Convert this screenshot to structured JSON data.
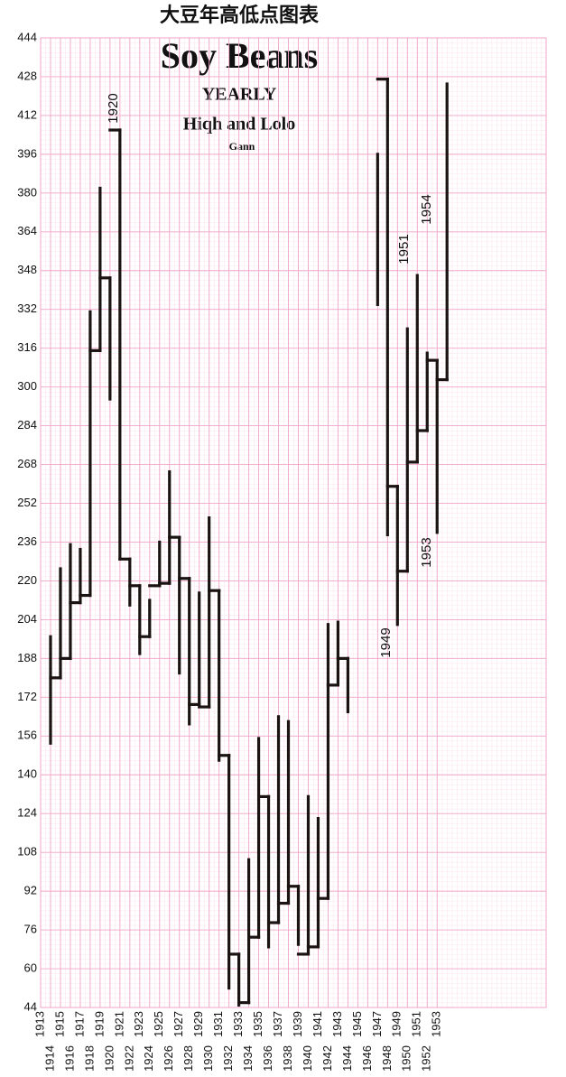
{
  "chart_data": {
    "type": "range",
    "title": "大豆年高低点图表",
    "subtitle": "Soy Beans",
    "texts": [
      "YEARLY",
      "Hiqh and Lolo",
      "Gann"
    ],
    "annotations": [
      "1920",
      "1949",
      "1951",
      "1953",
      "1954"
    ],
    "x": [
      1914,
      1915,
      1916,
      1917,
      1918,
      1919,
      1920,
      1921,
      1922,
      1923,
      1924,
      1925,
      1926,
      1927,
      1928,
      1929,
      1930,
      1931,
      1932,
      1933,
      1934,
      1935,
      1936,
      1937,
      1938,
      1939,
      1940,
      1941,
      1942,
      1943,
      1944,
      1945,
      1946,
      1947,
      1948,
      1949,
      1950,
      1951,
      1952,
      1953,
      1954
    ],
    "values": [
      [
        153,
        197
      ],
      [
        180,
        225
      ],
      [
        188,
        235
      ],
      [
        211,
        233
      ],
      [
        214,
        331
      ],
      [
        315,
        382
      ],
      [
        295,
        345
      ],
      [
        229,
        406
      ],
      [
        210,
        229
      ],
      [
        190,
        218
      ],
      [
        197,
        212
      ],
      [
        218,
        236
      ],
      [
        219,
        265
      ],
      [
        182,
        238
      ],
      [
        161,
        221
      ],
      [
        169,
        215
      ],
      [
        168,
        246
      ],
      [
        146,
        216
      ],
      [
        52,
        148
      ],
      [
        45,
        66
      ],
      [
        46,
        105
      ],
      [
        73,
        155
      ],
      [
        69,
        131
      ],
      [
        79,
        164
      ],
      [
        87,
        162
      ],
      [
        70,
        94
      ],
      [
        66,
        131
      ],
      [
        69,
        122
      ],
      [
        89,
        202
      ],
      [
        177,
        203
      ],
      [
        166,
        188
      ],
      null,
      null,
      [
        334,
        396
      ],
      [
        239,
        427
      ],
      [
        202,
        259
      ],
      [
        224,
        324
      ],
      [
        269,
        346
      ],
      [
        282,
        314
      ],
      [
        240,
        311
      ],
      [
        303,
        425
      ]
    ],
    "color": "#1a1311",
    "grid_color": "#f0a6c8",
    "xlim": [
      1913,
      1964
    ],
    "xticks": [
      1913,
      1914,
      1915,
      1916,
      1917,
      1918,
      1919,
      1920,
      1921,
      1922,
      1923,
      1924,
      1925,
      1926,
      1927,
      1928,
      1929,
      1930,
      1931,
      1932,
      1933,
      1934,
      1935,
      1936,
      1937,
      1938,
      1939,
      1940,
      1941,
      1942,
      1943,
      1944,
      1945,
      1946,
      1947,
      1948,
      1949,
      1950,
      1951,
      1952,
      1953
    ],
    "ylim": [
      44,
      444
    ],
    "yticks": [
      44,
      60,
      76,
      92,
      108,
      124,
      140,
      156,
      172,
      188,
      204,
      220,
      236,
      252,
      268,
      284,
      300,
      316,
      332,
      348,
      364,
      380,
      396,
      412,
      428,
      444
    ],
    "grid": true
  }
}
